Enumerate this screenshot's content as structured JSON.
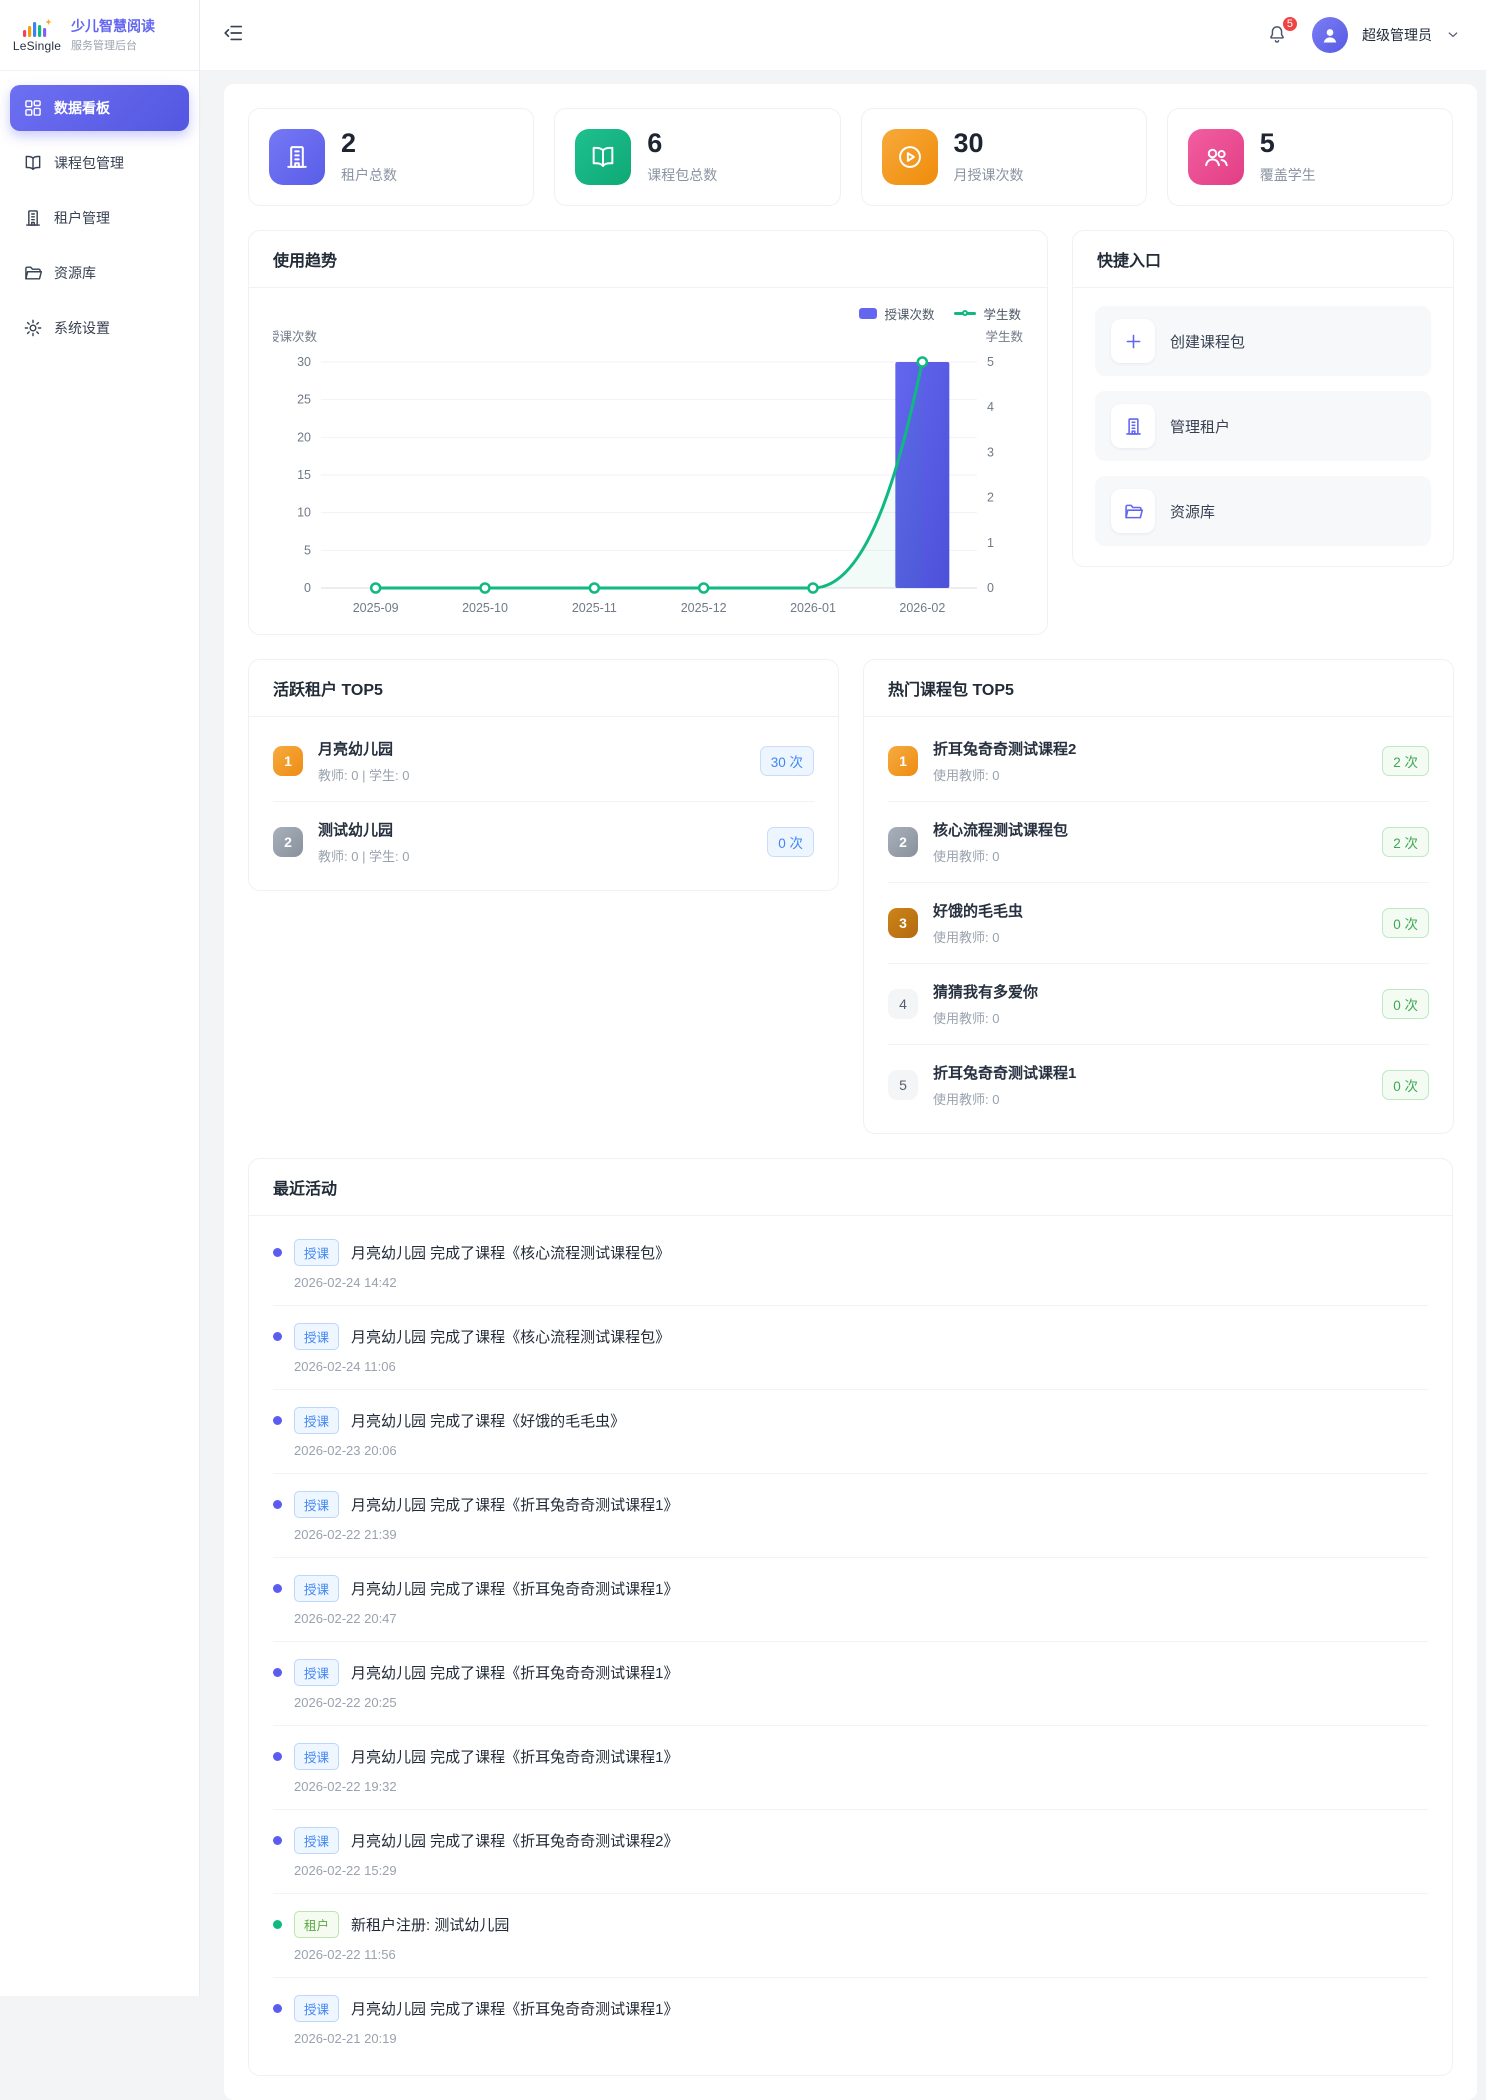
{
  "brand": {
    "logo_text": "LeSingle",
    "title": "少儿智慧阅读",
    "subtitle": "服务管理后台"
  },
  "sidebar": {
    "items": [
      {
        "key": "dashboard",
        "label": "数据看板",
        "icon": "grid",
        "state": "active"
      },
      {
        "key": "packages",
        "label": "课程包管理",
        "icon": "book",
        "state": "normal"
      },
      {
        "key": "tenants",
        "label": "租户管理",
        "icon": "building",
        "state": "normal"
      },
      {
        "key": "resources",
        "label": "资源库",
        "icon": "folder",
        "state": "normal"
      },
      {
        "key": "settings",
        "label": "系统设置",
        "icon": "gear",
        "state": "normal"
      }
    ]
  },
  "header": {
    "notification_count": "5",
    "user_name": "超级管理员"
  },
  "stats": {
    "cards": [
      {
        "key": "tenant-total",
        "value": "2",
        "label": "租户总数",
        "icon": "building",
        "color": "#7578f5",
        "color2": "#5a5de8"
      },
      {
        "key": "package-total",
        "value": "6",
        "label": "课程包总数",
        "icon": "book",
        "color": "#1fc08f",
        "color2": "#0ea975"
      },
      {
        "key": "monthly-lessons",
        "value": "30",
        "label": "月授课次数",
        "icon": "play",
        "color": "#f7a93b",
        "color2": "#ef8c0a"
      },
      {
        "key": "students-covered",
        "value": "5",
        "label": "覆盖学生",
        "icon": "users",
        "color": "#f25fa0",
        "color2": "#e23d85"
      }
    ]
  },
  "chart_data": {
    "type": "bar",
    "title": "使用趋势",
    "categories": [
      "2025-09",
      "2025-10",
      "2025-11",
      "2025-12",
      "2026-01",
      "2026-02"
    ],
    "series": [
      {
        "name": "授课次数",
        "kind": "bar",
        "axis": "left",
        "color": "#6366ee",
        "color2": "#4d50d8",
        "values": [
          0,
          0,
          0,
          0,
          0,
          30
        ]
      },
      {
        "name": "学生数",
        "kind": "line",
        "axis": "right",
        "color": "#10b981",
        "values": [
          0,
          0,
          0,
          0,
          0,
          5
        ]
      }
    ],
    "left_axis": {
      "title": "授课次数",
      "min": 0,
      "max": 30,
      "ticks": [
        30,
        25,
        20,
        15,
        10,
        5,
        0
      ]
    },
    "right_axis": {
      "title": "学生数",
      "min": 0,
      "max": 5,
      "ticks": [
        5,
        4,
        3,
        2,
        1,
        0
      ]
    },
    "grid": true,
    "legend_position": "top-right"
  },
  "quick_entry": {
    "title": "快捷入口",
    "items": [
      {
        "key": "create-package",
        "label": "创建课程包",
        "icon": "plus"
      },
      {
        "key": "manage-tenants",
        "label": "管理租户",
        "icon": "building"
      },
      {
        "key": "resource-library",
        "label": "资源库",
        "icon": "folder"
      }
    ]
  },
  "active_tenants": {
    "title": "活跃租户 TOP5",
    "items": [
      {
        "rank": "1",
        "name": "月亮幼儿园",
        "sub": "教师: 0 | 学生: 0",
        "count": "30 次"
      },
      {
        "rank": "2",
        "name": "测试幼儿园",
        "sub": "教师: 0 | 学生: 0",
        "count": "0 次"
      }
    ]
  },
  "hot_packages": {
    "title": "热门课程包 TOP5",
    "items": [
      {
        "rank": "1",
        "name": "折耳兔奇奇测试课程2",
        "sub": "使用教师: 0",
        "count": "2 次"
      },
      {
        "rank": "2",
        "name": "核心流程测试课程包",
        "sub": "使用教师: 0",
        "count": "2 次"
      },
      {
        "rank": "3",
        "name": "好饿的毛毛虫",
        "sub": "使用教师: 0",
        "count": "0 次"
      },
      {
        "rank": "4",
        "name": "猜猜我有多爱你",
        "sub": "使用教师: 0",
        "count": "0 次"
      },
      {
        "rank": "5",
        "name": "折耳兔奇奇测试课程1",
        "sub": "使用教师: 0",
        "count": "0 次"
      }
    ]
  },
  "activities": {
    "title": "最近活动",
    "items": [
      {
        "kind": "lesson",
        "badge": "授课",
        "text": "月亮幼儿园 完成了课程《核心流程测试课程包》",
        "time": "2026-02-24 14:42"
      },
      {
        "kind": "lesson",
        "badge": "授课",
        "text": "月亮幼儿园 完成了课程《核心流程测试课程包》",
        "time": "2026-02-24 11:06"
      },
      {
        "kind": "lesson",
        "badge": "授课",
        "text": "月亮幼儿园 完成了课程《好饿的毛毛虫》",
        "time": "2026-02-23 20:06"
      },
      {
        "kind": "lesson",
        "badge": "授课",
        "text": "月亮幼儿园 完成了课程《折耳兔奇奇测试课程1》",
        "time": "2026-02-22 21:39"
      },
      {
        "kind": "lesson",
        "badge": "授课",
        "text": "月亮幼儿园 完成了课程《折耳兔奇奇测试课程1》",
        "time": "2026-02-22 20:47"
      },
      {
        "kind": "lesson",
        "badge": "授课",
        "text": "月亮幼儿园 完成了课程《折耳兔奇奇测试课程1》",
        "time": "2026-02-22 20:25"
      },
      {
        "kind": "lesson",
        "badge": "授课",
        "text": "月亮幼儿园 完成了课程《折耳兔奇奇测试课程1》",
        "time": "2026-02-22 19:32"
      },
      {
        "kind": "lesson",
        "badge": "授课",
        "text": "月亮幼儿园 完成了课程《折耳兔奇奇测试课程2》",
        "time": "2026-02-22 15:29"
      },
      {
        "kind": "tenant",
        "badge": "租户",
        "text": "新租户注册: 测试幼儿园",
        "time": "2026-02-22 11:56"
      },
      {
        "kind": "lesson",
        "badge": "授课",
        "text": "月亮幼儿园 完成了课程《折耳兔奇奇测试课程1》",
        "time": "2026-02-21 20:19"
      }
    ]
  }
}
